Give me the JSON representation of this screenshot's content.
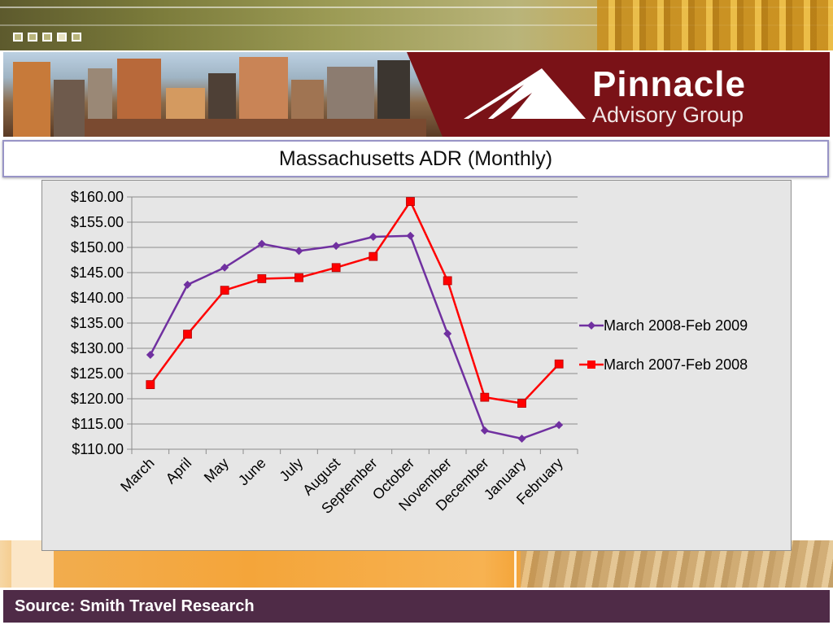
{
  "header": {
    "brand_name": "Pinnacle",
    "brand_tagline": "Advisory Group"
  },
  "colors": {
    "series_1": "#7030a0",
    "series_2": "#ff0000",
    "banner": "#7a1217",
    "footer": "#4f2b47"
  },
  "chart_data": {
    "type": "line",
    "title": "Massachusetts ADR (Monthly)",
    "xlabel": "",
    "ylabel": "",
    "categories": [
      "March",
      "April",
      "May",
      "June",
      "July",
      "August",
      "September",
      "October",
      "November",
      "December",
      "January",
      "February"
    ],
    "ylim": [
      110,
      160
    ],
    "yticks": [
      "$160.00",
      "$155.00",
      "$150.00",
      "$145.00",
      "$140.00",
      "$135.00",
      "$130.00",
      "$125.00",
      "$120.00",
      "$115.00",
      "$110.00"
    ],
    "ytick_values": [
      160,
      155,
      150,
      145,
      140,
      135,
      130,
      125,
      120,
      115,
      110
    ],
    "grid": true,
    "legend_position": "right",
    "series": [
      {
        "name": "March 2008-Feb 2009",
        "marker": "diamond",
        "color": "#7030a0",
        "values": [
          128.7,
          142.6,
          146.0,
          150.7,
          149.3,
          150.3,
          152.1,
          152.3,
          132.9,
          113.7,
          112.1,
          114.8
        ]
      },
      {
        "name": "March 2007-Feb 2008",
        "marker": "square",
        "color": "#ff0000",
        "values": [
          122.8,
          132.8,
          141.5,
          143.8,
          144.0,
          146.0,
          148.2,
          159.1,
          143.4,
          120.3,
          119.1,
          126.9
        ]
      }
    ]
  },
  "footer": {
    "source": "Source: Smith Travel Research"
  }
}
